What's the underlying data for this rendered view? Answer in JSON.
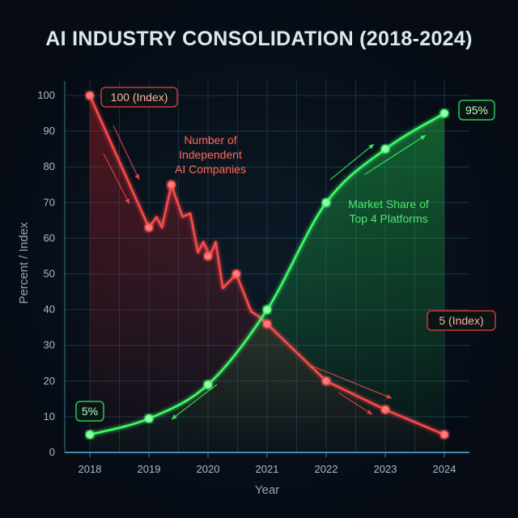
{
  "chart_data": {
    "type": "line",
    "title": "AI INDUSTRY CONSOLIDATION (2018-2024)",
    "xlabel": "Year",
    "ylabel": "Percent / Index",
    "xlim": [
      2018,
      2024
    ],
    "ylim": [
      0,
      100
    ],
    "x_ticks": [
      "2018",
      "2019",
      "2020",
      "2021",
      "2022",
      "2023",
      "2024"
    ],
    "y_ticks": [
      "0",
      "10",
      "20",
      "30",
      "40",
      "50",
      "60",
      "70",
      "80",
      "90",
      "100"
    ],
    "grid": true,
    "series": [
      {
        "name": "Number of Independent AI Companies",
        "color": "#ff4a4a",
        "x": [
          2018,
          2019,
          2019.13,
          2019.22,
          2019.38,
          2019.57,
          2019.7,
          2019.83,
          2019.92,
          2020.03,
          2020.13,
          2020.25,
          2020.48,
          2020.73,
          2020.87,
          2021,
          2022,
          2023,
          2024
        ],
        "y": [
          100,
          63,
          66,
          63,
          75,
          66,
          67,
          56,
          59,
          55,
          59,
          46,
          50,
          39.5,
          38,
          36,
          20,
          12,
          5
        ],
        "markers": [
          [
            2018,
            100
          ],
          [
            2019,
            63
          ],
          [
            2019.38,
            75
          ],
          [
            2020,
            55
          ],
          [
            2020.48,
            50
          ],
          [
            2021,
            36
          ],
          [
            2022,
            20
          ],
          [
            2023,
            12
          ],
          [
            2024,
            5
          ]
        ]
      },
      {
        "name": "Market Share of Top 4 Platforms",
        "color": "#3dff6a",
        "x": [
          2018,
          2019,
          2020,
          2021,
          2022,
          2023,
          2024
        ],
        "y": [
          5,
          9.5,
          19,
          40,
          70,
          85,
          95
        ]
      }
    ],
    "annotations": {
      "red_start": "100 (Index)",
      "red_end": "5 (Index)",
      "green_start": "5%",
      "green_end": "95%",
      "red_label": [
        "Number of",
        "Independent",
        "AI Companies"
      ],
      "green_label": [
        "Market Share of",
        "Top 4 Platforms"
      ]
    }
  }
}
